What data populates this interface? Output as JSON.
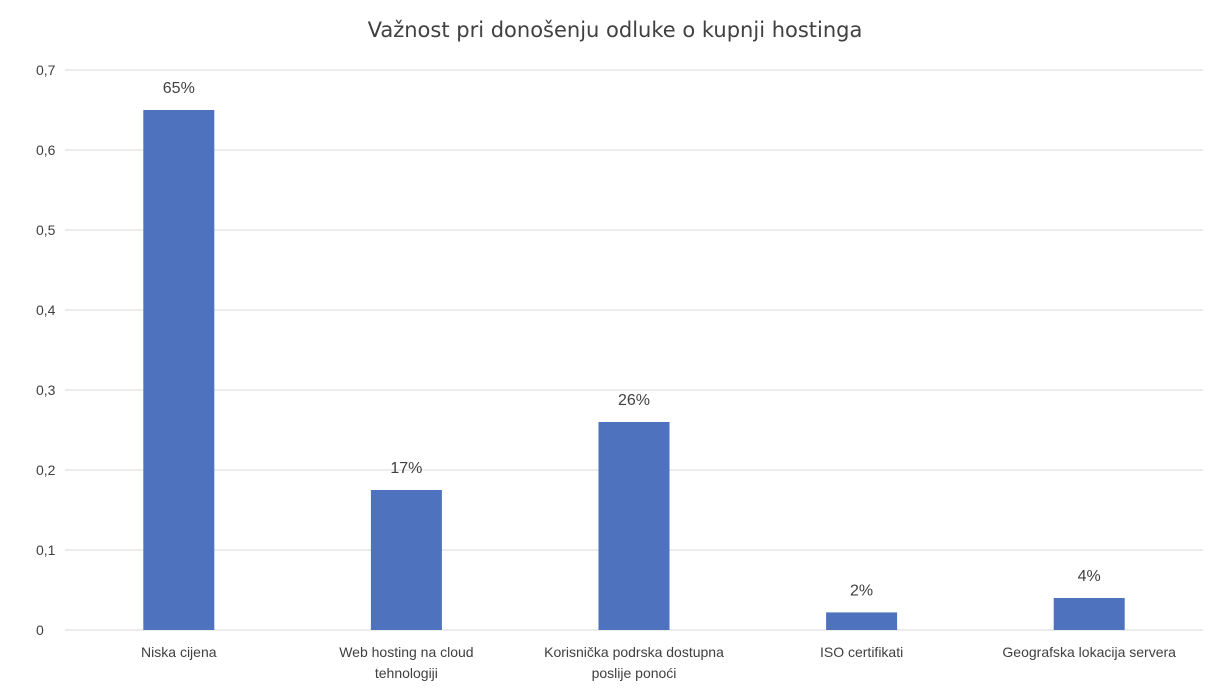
{
  "chart_data": {
    "type": "bar",
    "title": "Važnost pri donošenju odluke o kupnji hostinga",
    "categories": [
      "Niska cijena",
      "Web hosting na cloud tehnologiji",
      "Korisnička podrska dostupna poslije ponoći",
      "ISO certifikati",
      "Geografska lokacija servera"
    ],
    "category_lines": [
      [
        "Niska cijena"
      ],
      [
        "Web hosting na cloud",
        "tehnologiji"
      ],
      [
        "Korisnička podrska dostupna",
        "poslije ponoći"
      ],
      [
        "ISO certifikati"
      ],
      [
        "Geografska lokacija servera"
      ]
    ],
    "values": [
      0.65,
      0.175,
      0.26,
      0.022,
      0.04
    ],
    "data_labels": [
      "65%",
      "17%",
      "26%",
      "2%",
      "4%"
    ],
    "xlabel": "",
    "ylabel": "",
    "ylim": [
      0,
      0.7
    ],
    "yticks": [
      0,
      0.1,
      0.2,
      0.3,
      0.4,
      0.5,
      0.6,
      0.7
    ],
    "ytick_labels": [
      "0",
      "0,1",
      "0,2",
      "0,3",
      "0,4",
      "0,5",
      "0,6",
      "0,7"
    ],
    "grid": true,
    "legend": "none",
    "bar_color": "#4e72be"
  }
}
